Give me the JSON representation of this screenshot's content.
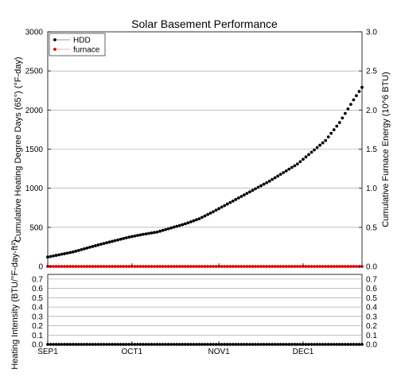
{
  "chart_data": [
    {
      "type": "scatter",
      "title": "Solar Basement Performance",
      "ylabel_left": "Cumulative Heating Degree Days (65°) (°F-day)",
      "ylabel_right": "Cumulative Furnace Energy (10^6 BTU)",
      "ylim_left": [
        0,
        3000
      ],
      "ylim_right": [
        0.0,
        3.0
      ],
      "yticks_left": [
        "0",
        "500",
        "1000",
        "1500",
        "2000",
        "2500",
        "3000"
      ],
      "yticks_right": [
        "0.0",
        "0.5",
        "1.0",
        "1.5",
        "2.0",
        "2.5",
        "3.0"
      ],
      "grid": true,
      "legend_position": "top-left",
      "x_day_range": [
        1,
        113
      ],
      "series": [
        {
          "name": "HDD",
          "color": "#000000",
          "axis": "left",
          "x_days": [
            1,
            10,
            20,
            30,
            35,
            40,
            50,
            55,
            60,
            70,
            80,
            90,
            100,
            105,
            110,
            113
          ],
          "values": [
            120,
            185,
            285,
            375,
            410,
            440,
            545,
            610,
            700,
            895,
            1090,
            1310,
            1610,
            1840,
            2130,
            2290
          ]
        },
        {
          "name": "furnace",
          "color": "#e00000",
          "axis": "right",
          "x_days": [
            1,
            113
          ],
          "values": [
            0.0,
            0.0
          ]
        }
      ]
    },
    {
      "type": "scatter",
      "ylabel": "Heating Intensity (BTU/°F-day-ft²)",
      "ylim": [
        0.0,
        0.75
      ],
      "yticks": [
        "0.0",
        "0.1",
        "0.2",
        "0.3",
        "0.4",
        "0.5",
        "0.6",
        "0.7"
      ],
      "xticks": [
        "SEP1",
        "OCT1",
        "NOV1",
        "DEC1"
      ],
      "xtick_days": [
        1,
        31,
        62,
        92
      ],
      "grid": true,
      "x_day_range": [
        1,
        113
      ],
      "series": [
        {
          "color": "#000000",
          "x_days": [
            1,
            113
          ],
          "values": [
            0.0,
            0.0
          ]
        }
      ]
    }
  ]
}
